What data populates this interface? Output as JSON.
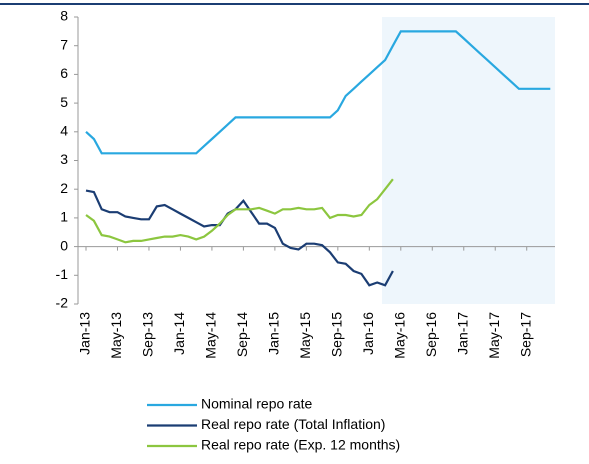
{
  "chart_data": {
    "type": "line",
    "categories": [
      "Jan-13",
      null,
      null,
      null,
      "May-13",
      null,
      null,
      null,
      "Sep-13",
      null,
      null,
      null,
      "Jan-14",
      null,
      null,
      null,
      "May-14",
      null,
      null,
      null,
      "Sep-14",
      null,
      null,
      null,
      "Jan-15",
      null,
      null,
      null,
      "May-15",
      null,
      null,
      null,
      "Sep-15",
      null,
      null,
      null,
      "Jan-16",
      null,
      null,
      null,
      "May-16",
      null,
      null,
      null,
      "Sep-16",
      null,
      null,
      null,
      "Jan-17",
      null,
      null,
      null,
      "May-17",
      null,
      null,
      null,
      "Sep-17",
      null,
      null,
      null
    ],
    "series": [
      {
        "name": "Nominal repo rate",
        "color": "#29a8e0",
        "values": [
          4.0,
          3.75,
          3.25,
          3.25,
          3.25,
          3.25,
          3.25,
          3.25,
          3.25,
          3.25,
          3.25,
          3.25,
          3.25,
          3.25,
          3.25,
          3.5,
          3.75,
          4.0,
          4.25,
          4.5,
          4.5,
          4.5,
          4.5,
          4.5,
          4.5,
          4.5,
          4.5,
          4.5,
          4.5,
          4.5,
          4.5,
          4.5,
          4.75,
          5.25,
          5.5,
          5.75,
          6.0,
          6.25,
          6.5,
          7.0,
          7.5,
          7.5,
          7.5,
          7.5,
          7.5,
          7.5,
          7.5,
          7.5,
          7.25,
          7.0,
          6.75,
          6.5,
          6.25,
          6.0,
          5.75,
          5.5,
          5.5,
          5.5,
          5.5,
          5.5
        ]
      },
      {
        "name": "Real repo rate (Total Inflation)",
        "color": "#1b3d73",
        "values": [
          1.95,
          1.9,
          1.3,
          1.2,
          1.2,
          1.05,
          1.0,
          0.95,
          0.95,
          1.4,
          1.45,
          1.3,
          1.15,
          1.0,
          0.85,
          0.7,
          0.75,
          0.75,
          1.15,
          1.3,
          1.6,
          1.2,
          0.8,
          0.8,
          0.65,
          0.1,
          -0.05,
          -0.1,
          0.1,
          0.1,
          0.05,
          -0.2,
          -0.55,
          -0.6,
          -0.85,
          -0.95,
          -1.35,
          -1.25,
          -1.35,
          -0.85,
          null,
          null,
          null,
          null,
          null,
          null,
          null,
          null,
          null,
          null,
          null,
          null,
          null,
          null,
          null,
          null,
          null,
          null,
          null,
          null
        ]
      },
      {
        "name": "Real repo rate (Exp. 12 months)",
        "color": "#8cc63f",
        "values": [
          1.1,
          0.9,
          0.4,
          0.35,
          0.25,
          0.15,
          0.2,
          0.2,
          0.25,
          0.3,
          0.35,
          0.35,
          0.4,
          0.35,
          0.25,
          0.35,
          0.55,
          0.8,
          1.1,
          1.3,
          1.3,
          1.3,
          1.35,
          1.25,
          1.15,
          1.3,
          1.3,
          1.35,
          1.3,
          1.3,
          1.35,
          1.0,
          1.1,
          1.1,
          1.05,
          1.1,
          1.45,
          1.65,
          2.0,
          2.35,
          null,
          null,
          null,
          null,
          null,
          null,
          null,
          null,
          null,
          null,
          null,
          null,
          null,
          null,
          null,
          null,
          null,
          null,
          null,
          null
        ]
      }
    ],
    "ylim": [
      -2,
      8
    ],
    "yticks": [
      -2,
      -1,
      0,
      1,
      2,
      3,
      4,
      5,
      6,
      7,
      8
    ]
  }
}
